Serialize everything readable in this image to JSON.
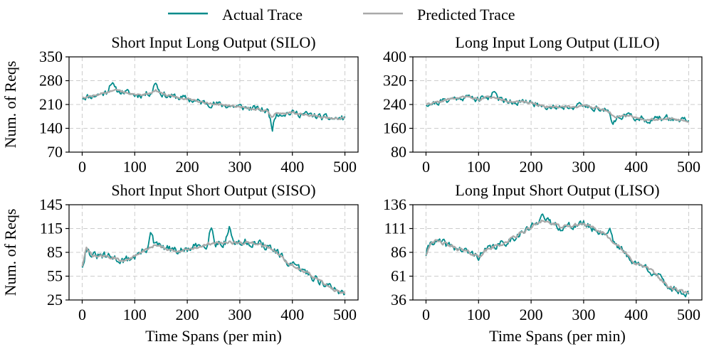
{
  "legend": {
    "actual_label": "Actual Trace",
    "predicted_label": "Predicted Trace"
  },
  "colors": {
    "actual": "#008B8B",
    "predicted": "#A9A9A9",
    "grid": "#CCCCCC"
  },
  "chart_data": [
    {
      "type": "line",
      "title": "Short Input Long Output (SILO)",
      "xlabel": "",
      "ylabel": "Num. of Reqs",
      "xlim": [
        -25,
        525
      ],
      "ylim": [
        70,
        350
      ],
      "xticks": [
        0,
        100,
        200,
        300,
        400,
        500
      ],
      "yticks": [
        70,
        140,
        210,
        280,
        350
      ],
      "trend": [
        [
          0,
          232
        ],
        [
          20,
          235
        ],
        [
          40,
          243
        ],
        [
          60,
          252
        ],
        [
          80,
          247
        ],
        [
          100,
          238
        ],
        [
          120,
          240
        ],
        [
          140,
          252
        ],
        [
          160,
          236
        ],
        [
          180,
          232
        ],
        [
          200,
          226
        ],
        [
          220,
          218
        ],
        [
          240,
          214
        ],
        [
          260,
          210
        ],
        [
          280,
          206
        ],
        [
          300,
          203
        ],
        [
          320,
          199
        ],
        [
          340,
          195
        ],
        [
          360,
          188
        ],
        [
          380,
          184
        ],
        [
          400,
          185
        ],
        [
          420,
          182
        ],
        [
          440,
          177
        ],
        [
          460,
          171
        ],
        [
          480,
          168
        ],
        [
          500,
          170
        ]
      ],
      "series": [
        {
          "name": "Actual Trace",
          "noise": 15,
          "seed": 11,
          "spikes": [
            [
              55,
              30
            ],
            [
              140,
              25
            ],
            [
              362,
              -45
            ]
          ]
        },
        {
          "name": "Predicted Trace",
          "noise": 5,
          "seed": 12,
          "spikes": [
            [
              362,
              -15
            ]
          ]
        }
      ]
    },
    {
      "type": "line",
      "title": "Long Input Long Output (LILO)",
      "xlabel": "",
      "ylabel": "",
      "xlim": [
        -25,
        525
      ],
      "ylim": [
        80,
        400
      ],
      "xticks": [
        0,
        100,
        200,
        300,
        400,
        500
      ],
      "yticks": [
        80,
        160,
        240,
        320,
        400
      ],
      "trend": [
        [
          0,
          242
        ],
        [
          20,
          246
        ],
        [
          40,
          256
        ],
        [
          60,
          262
        ],
        [
          80,
          266
        ],
        [
          100,
          257
        ],
        [
          120,
          266
        ],
        [
          140,
          258
        ],
        [
          160,
          252
        ],
        [
          180,
          247
        ],
        [
          200,
          246
        ],
        [
          220,
          236
        ],
        [
          240,
          232
        ],
        [
          260,
          233
        ],
        [
          280,
          233
        ],
        [
          300,
          235
        ],
        [
          320,
          231
        ],
        [
          340,
          222
        ],
        [
          360,
          200
        ],
        [
          380,
          205
        ],
        [
          400,
          196
        ],
        [
          420,
          188
        ],
        [
          440,
          191
        ],
        [
          460,
          195
        ],
        [
          480,
          188
        ],
        [
          500,
          186
        ]
      ],
      "series": [
        {
          "name": "Actual Trace",
          "noise": 16,
          "seed": 21,
          "spikes": [
            [
              130,
              30
            ],
            [
              355,
              -35
            ]
          ]
        },
        {
          "name": "Predicted Trace",
          "noise": 6,
          "seed": 22,
          "spikes": []
        }
      ]
    },
    {
      "type": "line",
      "title": "Short Input Short Output (SISO)",
      "xlabel": "Time Spans (per min)",
      "ylabel": "Num. of Reqs",
      "xlim": [
        -25,
        525
      ],
      "ylim": [
        25,
        145
      ],
      "xticks": [
        0,
        100,
        200,
        300,
        400,
        500
      ],
      "yticks": [
        25,
        55,
        85,
        115,
        145
      ],
      "trend": [
        [
          0,
          68
        ],
        [
          8,
          90
        ],
        [
          20,
          80
        ],
        [
          40,
          80
        ],
        [
          60,
          78
        ],
        [
          80,
          74
        ],
        [
          100,
          80
        ],
        [
          120,
          88
        ],
        [
          140,
          94
        ],
        [
          160,
          90
        ],
        [
          180,
          86
        ],
        [
          200,
          88
        ],
        [
          220,
          92
        ],
        [
          240,
          96
        ],
        [
          260,
          97
        ],
        [
          280,
          98
        ],
        [
          300,
          96
        ],
        [
          320,
          98
        ],
        [
          340,
          95
        ],
        [
          360,
          90
        ],
        [
          380,
          78
        ],
        [
          400,
          68
        ],
        [
          420,
          62
        ],
        [
          440,
          54
        ],
        [
          460,
          46
        ],
        [
          480,
          38
        ],
        [
          500,
          34
        ]
      ],
      "series": [
        {
          "name": "Actual Trace",
          "noise": 8,
          "seed": 31,
          "spikes": [
            [
              130,
              18
            ],
            [
              245,
              22
            ],
            [
              280,
              20
            ]
          ]
        },
        {
          "name": "Predicted Trace",
          "noise": 3,
          "seed": 32,
          "spikes": []
        }
      ]
    },
    {
      "type": "line",
      "title": "Long Input Short Output (LISO)",
      "xlabel": "Time Spans (per min)",
      "ylabel": "",
      "xlim": [
        -25,
        525
      ],
      "ylim": [
        36,
        136
      ],
      "xticks": [
        0,
        100,
        200,
        300,
        400,
        500
      ],
      "yticks": [
        36,
        61,
        86,
        111,
        136
      ],
      "trend": [
        [
          0,
          84
        ],
        [
          10,
          98
        ],
        [
          30,
          96
        ],
        [
          50,
          92
        ],
        [
          70,
          88
        ],
        [
          100,
          82
        ],
        [
          120,
          90
        ],
        [
          150,
          96
        ],
        [
          180,
          106
        ],
        [
          200,
          112
        ],
        [
          220,
          120
        ],
        [
          240,
          116
        ],
        [
          260,
          112
        ],
        [
          280,
          114
        ],
        [
          300,
          116
        ],
        [
          320,
          110
        ],
        [
          340,
          106
        ],
        [
          360,
          96
        ],
        [
          380,
          84
        ],
        [
          400,
          74
        ],
        [
          420,
          70
        ],
        [
          440,
          62
        ],
        [
          460,
          50
        ],
        [
          480,
          46
        ],
        [
          500,
          42
        ]
      ],
      "series": [
        {
          "name": "Actual Trace",
          "noise": 6,
          "seed": 41,
          "spikes": [
            [
              220,
              10
            ],
            [
              350,
              10
            ]
          ]
        },
        {
          "name": "Predicted Trace",
          "noise": 3,
          "seed": 42,
          "spikes": []
        }
      ]
    }
  ]
}
